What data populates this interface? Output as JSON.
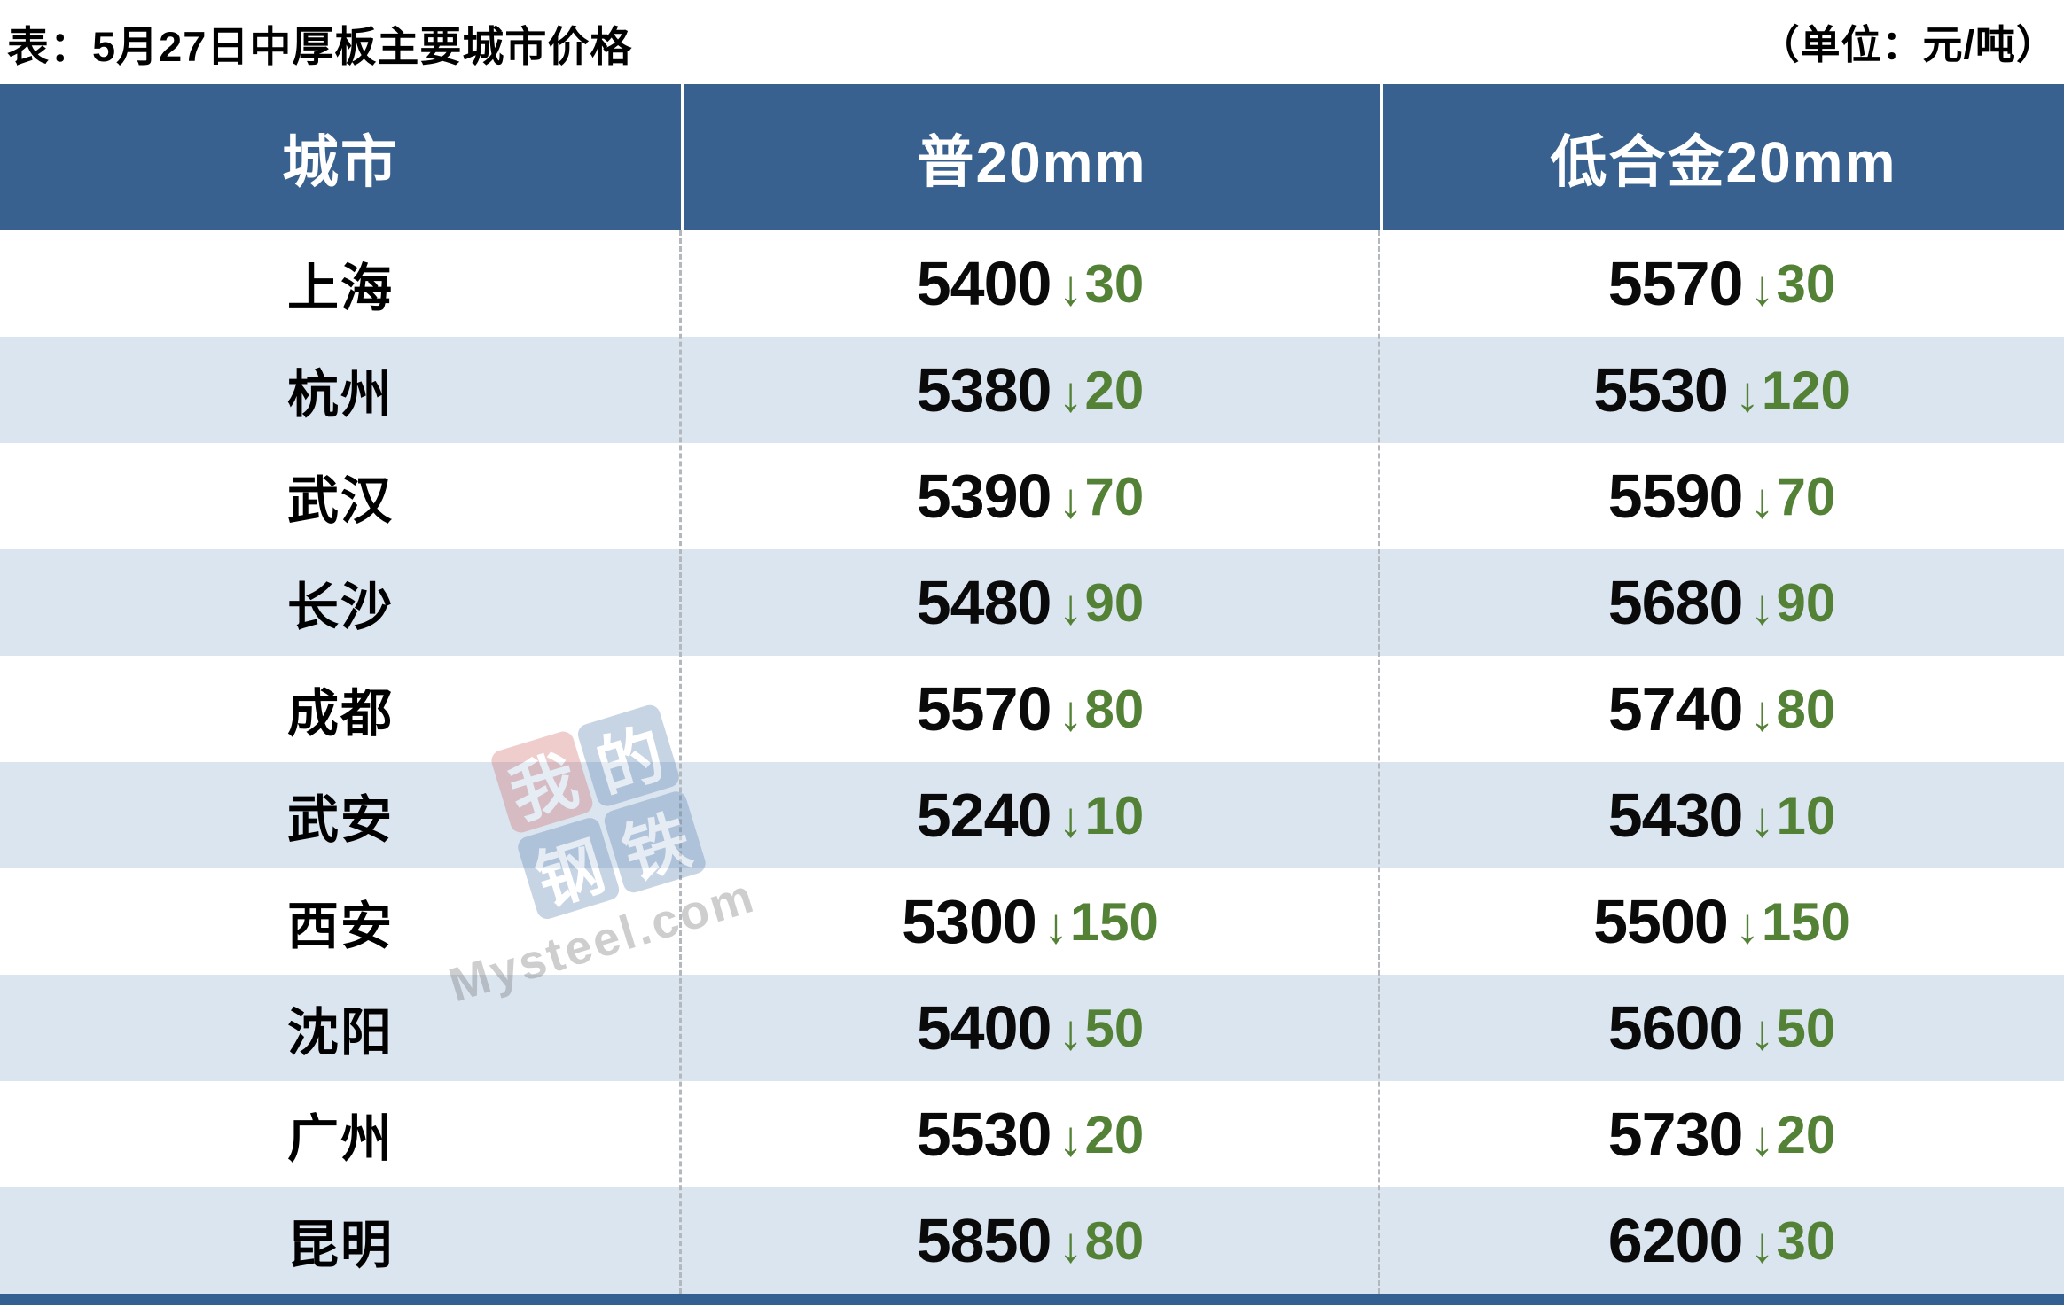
{
  "title_bar": {
    "title": "表：5月27日中厚板主要城市价格",
    "unit": "（单位：元/吨）"
  },
  "chart_data": {
    "type": "table",
    "title": "表：5月27日中厚板主要城市价格",
    "unit": "元/吨",
    "columns": [
      "城市",
      "普20mm",
      "低合金20mm"
    ],
    "change_direction": "down",
    "arrow": "↓",
    "rows": [
      {
        "city": "上海",
        "p20_price": "5400",
        "p20_change": "30",
        "alloy_price": "5570",
        "alloy_change": "30"
      },
      {
        "city": "杭州",
        "p20_price": "5380",
        "p20_change": "20",
        "alloy_price": "5530",
        "alloy_change": "120"
      },
      {
        "city": "武汉",
        "p20_price": "5390",
        "p20_change": "70",
        "alloy_price": "5590",
        "alloy_change": "70"
      },
      {
        "city": "长沙",
        "p20_price": "5480",
        "p20_change": "90",
        "alloy_price": "5680",
        "alloy_change": "90"
      },
      {
        "city": "成都",
        "p20_price": "5570",
        "p20_change": "80",
        "alloy_price": "5740",
        "alloy_change": "80"
      },
      {
        "city": "武安",
        "p20_price": "5240",
        "p20_change": "10",
        "alloy_price": "5430",
        "alloy_change": "10"
      },
      {
        "city": "西安",
        "p20_price": "5300",
        "p20_change": "150",
        "alloy_price": "5500",
        "alloy_change": "150"
      },
      {
        "city": "沈阳",
        "p20_price": "5400",
        "p20_change": "50",
        "alloy_price": "5600",
        "alloy_change": "50"
      },
      {
        "city": "广州",
        "p20_price": "5530",
        "p20_change": "20",
        "alloy_price": "5730",
        "alloy_change": "20"
      },
      {
        "city": "昆明",
        "p20_price": "5850",
        "p20_change": "80",
        "alloy_price": "6200",
        "alloy_change": "30"
      }
    ]
  },
  "watermark": {
    "chars": [
      "我",
      "的",
      "钢",
      "铁"
    ],
    "text": "Mysteel.com"
  },
  "colors": {
    "header_bg": "#38618f",
    "row_stripe": "#dbe5f0",
    "change_green": "#538135",
    "bottom_border": "#336090",
    "logo_red": "#cc5c5c",
    "logo_blue": "#4a74a8"
  }
}
